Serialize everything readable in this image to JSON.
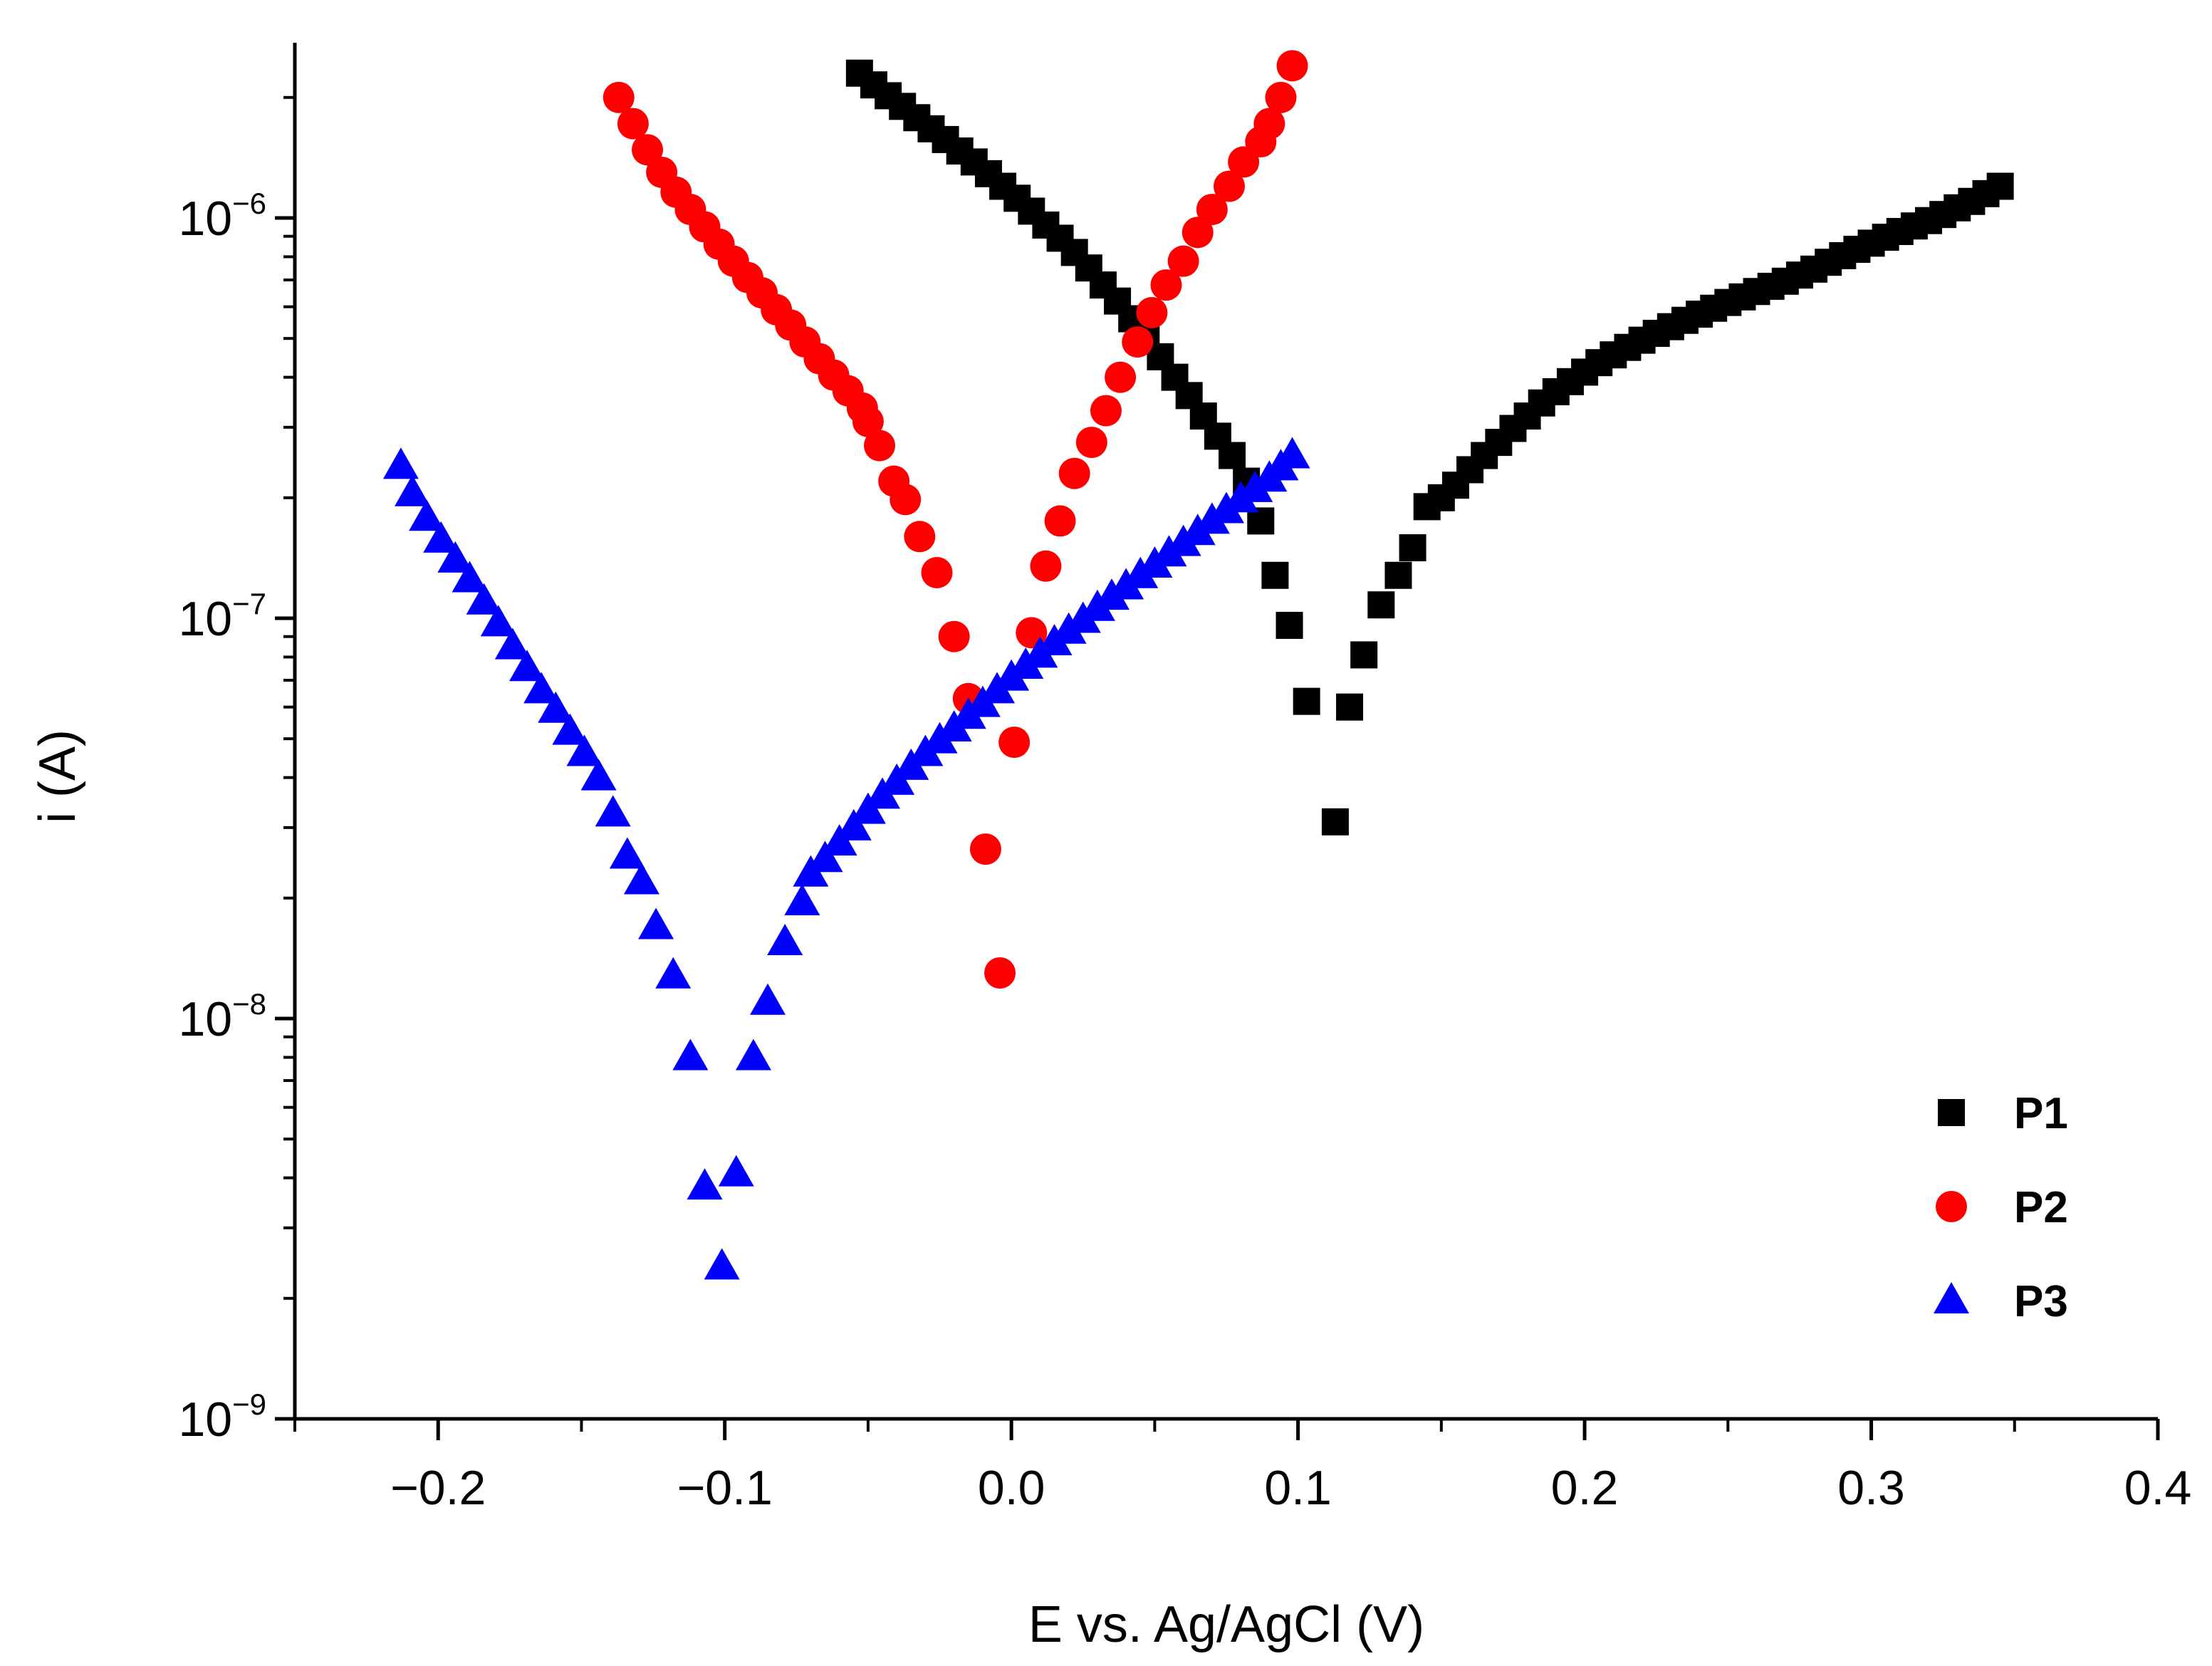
{
  "chart_data": {
    "type": "scatter",
    "xlabel": "E vs. Ag/AgCl (V)",
    "ylabel": "i (A)",
    "xscale": "linear",
    "yscale": "log",
    "xlim": [
      -0.25,
      0.4
    ],
    "ylim": [
      1e-09,
      3e-06
    ],
    "x_ticks": [
      -0.2,
      -0.1,
      0.0,
      0.1,
      0.2,
      0.3,
      0.4
    ],
    "x_tick_labels": [
      "−0.2",
      "−0.1",
      "0.0",
      "0.1",
      "0.2",
      "0.3",
      "0.4"
    ],
    "y_ticks": [
      {
        "value": 1e-09,
        "base": "10",
        "exp": "−9"
      },
      {
        "value": 1e-08,
        "base": "10",
        "exp": "−8"
      },
      {
        "value": 1e-07,
        "base": "10",
        "exp": "−7"
      },
      {
        "value": 1e-06,
        "base": "10",
        "exp": "−6"
      }
    ],
    "legend_position": "bottom-right",
    "series": [
      {
        "name": "P1",
        "marker": "square",
        "color": "#000000",
        "points": [
          [
            -0.053,
            2.3e-06
          ],
          [
            -0.048,
            2.15e-06
          ],
          [
            -0.043,
            2.02e-06
          ],
          [
            -0.038,
            1.9e-06
          ],
          [
            -0.033,
            1.78e-06
          ],
          [
            -0.028,
            1.67e-06
          ],
          [
            -0.023,
            1.57e-06
          ],
          [
            -0.018,
            1.47e-06
          ],
          [
            -0.013,
            1.38e-06
          ],
          [
            -0.008,
            1.29e-06
          ],
          [
            -0.003,
            1.2e-06
          ],
          [
            0.002,
            1.12e-06
          ],
          [
            0.007,
            1.04e-06
          ],
          [
            0.012,
            9.6e-07
          ],
          [
            0.017,
            8.9e-07
          ],
          [
            0.022,
            8.2e-07
          ],
          [
            0.027,
            7.5e-07
          ],
          [
            0.032,
            6.8e-07
          ],
          [
            0.037,
            6.2e-07
          ],
          [
            0.042,
            5.6e-07
          ],
          [
            0.047,
            5e-07
          ],
          [
            0.052,
            4.5e-07
          ],
          [
            0.057,
            4e-07
          ],
          [
            0.062,
            3.6e-07
          ],
          [
            0.067,
            3.2e-07
          ],
          [
            0.072,
            2.85e-07
          ],
          [
            0.077,
            2.55e-07
          ],
          [
            0.082,
            2.2e-07
          ],
          [
            0.087,
            1.75e-07
          ],
          [
            0.092,
            1.28e-07
          ],
          [
            0.097,
            9.6e-08
          ],
          [
            0.103,
            6.2e-08
          ],
          [
            0.113,
            3.1e-08
          ],
          [
            0.118,
            6e-08
          ],
          [
            0.123,
            8.1e-08
          ],
          [
            0.129,
            1.08e-07
          ],
          [
            0.135,
            1.28e-07
          ],
          [
            0.14,
            1.5e-07
          ],
          [
            0.145,
            1.9e-07
          ],
          [
            0.15,
            2e-07
          ],
          [
            0.155,
            2.15e-07
          ],
          [
            0.16,
            2.35e-07
          ],
          [
            0.165,
            2.55e-07
          ],
          [
            0.17,
            2.75e-07
          ],
          [
            0.175,
            2.98e-07
          ],
          [
            0.18,
            3.2e-07
          ],
          [
            0.185,
            3.45e-07
          ],
          [
            0.19,
            3.68e-07
          ],
          [
            0.195,
            3.9e-07
          ],
          [
            0.2,
            4.12e-07
          ],
          [
            0.205,
            4.35e-07
          ],
          [
            0.21,
            4.55e-07
          ],
          [
            0.215,
            4.75e-07
          ],
          [
            0.22,
            4.95e-07
          ],
          [
            0.225,
            5.15e-07
          ],
          [
            0.23,
            5.35e-07
          ],
          [
            0.235,
            5.55e-07
          ],
          [
            0.24,
            5.75e-07
          ],
          [
            0.245,
            5.95e-07
          ],
          [
            0.25,
            6.15e-07
          ],
          [
            0.255,
            6.35e-07
          ],
          [
            0.26,
            6.55e-07
          ],
          [
            0.265,
            6.75e-07
          ],
          [
            0.27,
            6.95e-07
          ],
          [
            0.275,
            7.2e-07
          ],
          [
            0.28,
            7.45e-07
          ],
          [
            0.285,
            7.75e-07
          ],
          [
            0.29,
            8.05e-07
          ],
          [
            0.295,
            8.35e-07
          ],
          [
            0.3,
            8.65e-07
          ],
          [
            0.305,
            8.95e-07
          ],
          [
            0.31,
            9.25e-07
          ],
          [
            0.315,
            9.55e-07
          ],
          [
            0.32,
            9.85e-07
          ],
          [
            0.325,
            1.02e-06
          ],
          [
            0.33,
            1.06e-06
          ],
          [
            0.335,
            1.1e-06
          ],
          [
            0.34,
            1.15e-06
          ],
          [
            0.345,
            1.2e-06
          ]
        ]
      },
      {
        "name": "P2",
        "marker": "circle",
        "color": "#ff0000",
        "points": [
          [
            -0.137,
            2e-06
          ],
          [
            -0.132,
            1.72e-06
          ],
          [
            -0.127,
            1.48e-06
          ],
          [
            -0.122,
            1.3e-06
          ],
          [
            -0.117,
            1.16e-06
          ],
          [
            -0.112,
            1.05e-06
          ],
          [
            -0.107,
            9.5e-07
          ],
          [
            -0.102,
            8.6e-07
          ],
          [
            -0.097,
            7.8e-07
          ],
          [
            -0.092,
            7.1e-07
          ],
          [
            -0.087,
            6.5e-07
          ],
          [
            -0.082,
            5.9e-07
          ],
          [
            -0.077,
            5.4e-07
          ],
          [
            -0.072,
            4.9e-07
          ],
          [
            -0.067,
            4.45e-07
          ],
          [
            -0.062,
            4.05e-07
          ],
          [
            -0.057,
            3.7e-07
          ],
          [
            -0.052,
            3.35e-07
          ],
          [
            -0.05,
            3.1e-07
          ],
          [
            -0.046,
            2.7e-07
          ],
          [
            -0.041,
            2.2e-07
          ],
          [
            -0.037,
            1.98e-07
          ],
          [
            -0.032,
            1.6e-07
          ],
          [
            -0.026,
            1.3e-07
          ],
          [
            -0.02,
            9e-08
          ],
          [
            -0.015,
            6.3e-08
          ],
          [
            -0.009,
            2.65e-08
          ],
          [
            -0.004,
            1.3e-08
          ],
          [
            0.001,
            4.9e-08
          ],
          [
            0.007,
            9.2e-08
          ],
          [
            0.012,
            1.35e-07
          ],
          [
            0.017,
            1.75e-07
          ],
          [
            0.022,
            2.3e-07
          ],
          [
            0.028,
            2.75e-07
          ],
          [
            0.033,
            3.3e-07
          ],
          [
            0.038,
            4e-07
          ],
          [
            0.044,
            4.9e-07
          ],
          [
            0.049,
            5.8e-07
          ],
          [
            0.054,
            6.8e-07
          ],
          [
            0.06,
            7.8e-07
          ],
          [
            0.065,
            9.2e-07
          ],
          [
            0.07,
            1.05e-06
          ],
          [
            0.076,
            1.2e-06
          ],
          [
            0.081,
            1.38e-06
          ],
          [
            0.087,
            1.55e-06
          ],
          [
            0.09,
            1.72e-06
          ],
          [
            0.094,
            2e-06
          ],
          [
            0.098,
            2.4e-06
          ]
        ]
      },
      {
        "name": "P3",
        "marker": "triangle",
        "color": "#0000ff",
        "points": [
          [
            -0.213,
            2.4e-07
          ],
          [
            -0.209,
            2.05e-07
          ],
          [
            -0.204,
            1.78e-07
          ],
          [
            -0.199,
            1.57e-07
          ],
          [
            -0.194,
            1.4e-07
          ],
          [
            -0.189,
            1.25e-07
          ],
          [
            -0.184,
            1.1e-07
          ],
          [
            -0.179,
            9.7e-08
          ],
          [
            -0.174,
            8.5e-08
          ],
          [
            -0.169,
            7.5e-08
          ],
          [
            -0.164,
            6.6e-08
          ],
          [
            -0.159,
            5.9e-08
          ],
          [
            -0.154,
            5.2e-08
          ],
          [
            -0.149,
            4.6e-08
          ],
          [
            -0.144,
            4e-08
          ],
          [
            -0.139,
            3.25e-08
          ],
          [
            -0.134,
            2.55e-08
          ],
          [
            -0.129,
            2.2e-08
          ],
          [
            -0.124,
            1.7e-08
          ],
          [
            -0.118,
            1.28e-08
          ],
          [
            -0.112,
            8e-09
          ],
          [
            -0.107,
            3.8e-09
          ],
          [
            -0.101,
            2.4e-09
          ],
          [
            -0.096,
            4.1e-09
          ],
          [
            -0.09,
            8e-09
          ],
          [
            -0.085,
            1.1e-08
          ],
          [
            -0.079,
            1.55e-08
          ],
          [
            -0.073,
            1.95e-08
          ],
          [
            -0.07,
            2.3e-08
          ],
          [
            -0.065,
            2.5e-08
          ],
          [
            -0.06,
            2.75e-08
          ],
          [
            -0.055,
            3e-08
          ],
          [
            -0.05,
            3.3e-08
          ],
          [
            -0.045,
            3.6e-08
          ],
          [
            -0.04,
            3.9e-08
          ],
          [
            -0.035,
            4.25e-08
          ],
          [
            -0.03,
            4.6e-08
          ],
          [
            -0.025,
            4.95e-08
          ],
          [
            -0.02,
            5.3e-08
          ],
          [
            -0.015,
            5.7e-08
          ],
          [
            -0.01,
            6.1e-08
          ],
          [
            -0.005,
            6.6e-08
          ],
          [
            0.0,
            7.1e-08
          ],
          [
            0.005,
            7.6e-08
          ],
          [
            0.01,
            8.1e-08
          ],
          [
            0.015,
            8.7e-08
          ],
          [
            0.02,
            9.3e-08
          ],
          [
            0.025,
            9.9e-08
          ],
          [
            0.03,
            1.06e-07
          ],
          [
            0.035,
            1.13e-07
          ],
          [
            0.04,
            1.2e-07
          ],
          [
            0.045,
            1.28e-07
          ],
          [
            0.05,
            1.36e-07
          ],
          [
            0.055,
            1.45e-07
          ],
          [
            0.06,
            1.54e-07
          ],
          [
            0.065,
            1.64e-07
          ],
          [
            0.07,
            1.75e-07
          ],
          [
            0.075,
            1.86e-07
          ],
          [
            0.08,
            1.98e-07
          ],
          [
            0.085,
            2.1e-07
          ],
          [
            0.09,
            2.23e-07
          ],
          [
            0.094,
            2.38e-07
          ],
          [
            0.098,
            2.55e-07
          ]
        ]
      }
    ]
  }
}
